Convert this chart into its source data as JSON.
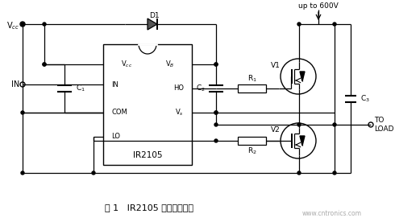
{
  "title": "图 1   IR2105 的非隔离驱动",
  "watermark": "www.cntronics.com",
  "bg_color": "#ffffff",
  "line_color": "#000000",
  "label_Vcc": "V$_{cc}$",
  "label_IN": "IN",
  "label_C1": "C$_1$",
  "label_Vcc_pin": "V$_{cc}$",
  "label_IN_pin": "IN",
  "label_COM": "COM",
  "label_LO": "LO",
  "label_VB": "V$_B$",
  "label_HO": "HO",
  "label_VS": "V$_s$",
  "label_chip": "IR2105",
  "label_C2": "C$_2$",
  "label_R1": "R$_1$",
  "label_R2": "R$_2$",
  "label_V1": "V1",
  "label_V2": "V2",
  "label_C3": "C$_3$",
  "label_600V": "up to 600V",
  "label_TO_LOAD": "TO\nLOAD",
  "fig_width": 4.9,
  "fig_height": 2.76,
  "dpi": 100
}
